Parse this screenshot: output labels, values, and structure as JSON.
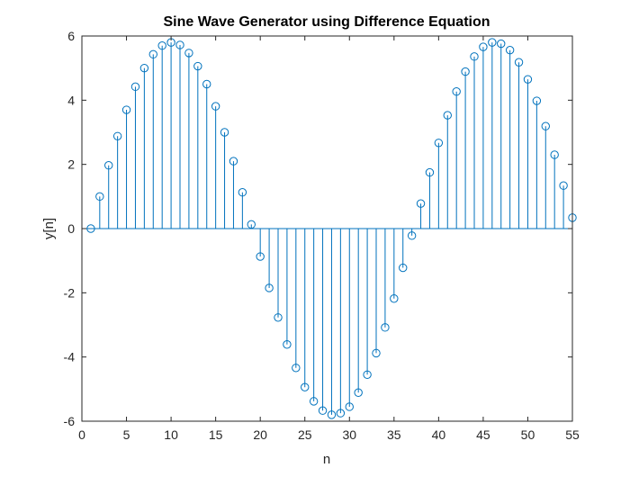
{
  "chart_data": {
    "type": "stem",
    "title": "Sine Wave Generator using Difference Equation",
    "xlabel": "n",
    "ylabel": "y[n]",
    "xlim": [
      0,
      55
    ],
    "ylim": [
      -6,
      6
    ],
    "xticks": [
      0,
      5,
      10,
      15,
      20,
      25,
      30,
      35,
      40,
      45,
      50,
      55
    ],
    "yticks": [
      -6,
      -4,
      -2,
      0,
      2,
      4,
      6
    ],
    "xtick_labels": [
      "0",
      "5",
      "10",
      "15",
      "20",
      "25",
      "30",
      "35",
      "40",
      "45",
      "50",
      "55"
    ],
    "ytick_labels": [
      "-6",
      "-4",
      "-2",
      "0",
      "2",
      "4",
      "6"
    ],
    "grid": false,
    "series": [
      {
        "color": "#0072BD",
        "marker": "circle-open",
        "x": [
          1,
          2,
          3,
          4,
          5,
          6,
          7,
          8,
          9,
          10,
          11,
          12,
          13,
          14,
          15,
          16,
          17,
          18,
          19,
          20,
          21,
          22,
          23,
          24,
          25,
          26,
          27,
          28,
          29,
          30,
          31,
          32,
          33,
          34,
          35,
          36,
          37,
          38,
          39,
          40,
          41,
          42,
          43,
          44,
          45,
          46,
          47,
          48,
          49,
          50,
          51,
          52,
          53,
          54,
          55
        ],
        "y": [
          0,
          1.0,
          1.97,
          2.88,
          3.7,
          4.42,
          5.0,
          5.43,
          5.7,
          5.8,
          5.72,
          5.47,
          5.06,
          4.5,
          3.81,
          3.0,
          2.1,
          1.13,
          0.13,
          -0.87,
          -1.85,
          -2.77,
          -3.61,
          -4.34,
          -4.94,
          -5.38,
          -5.67,
          -5.8,
          -5.75,
          -5.55,
          -5.11,
          -4.55,
          -3.88,
          -3.08,
          -2.18,
          -1.22,
          -0.22,
          0.78,
          1.75,
          2.67,
          3.53,
          4.27,
          4.89,
          5.36,
          5.66,
          5.8,
          5.76,
          5.56,
          5.18,
          4.65,
          3.98,
          3.19,
          2.3,
          1.34,
          0.34
        ]
      }
    ]
  }
}
